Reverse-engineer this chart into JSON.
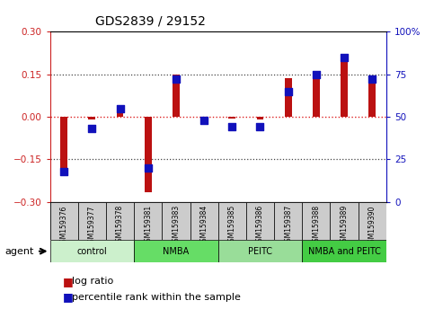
{
  "title": "GDS2839 / 29152",
  "samples": [
    "GSM159376",
    "GSM159377",
    "GSM159378",
    "GSM159381",
    "GSM159383",
    "GSM159384",
    "GSM159385",
    "GSM159386",
    "GSM159387",
    "GSM159388",
    "GSM159389",
    "GSM159390"
  ],
  "log_ratio": [
    -0.195,
    -0.01,
    0.02,
    -0.265,
    0.148,
    -0.005,
    -0.005,
    -0.01,
    0.135,
    0.148,
    0.195,
    0.145
  ],
  "percentile_rank": [
    18,
    43,
    55,
    20,
    72,
    48,
    44,
    44,
    65,
    75,
    85,
    72
  ],
  "groups": [
    {
      "label": "control",
      "start": 0,
      "end": 3,
      "color": "#ccf0cc"
    },
    {
      "label": "NMBA",
      "start": 3,
      "end": 6,
      "color": "#66dd66"
    },
    {
      "label": "PEITC",
      "start": 6,
      "end": 9,
      "color": "#99dd99"
    },
    {
      "label": "NMBA and PEITC",
      "start": 9,
      "end": 12,
      "color": "#44cc44"
    }
  ],
  "bar_color": "#bb1111",
  "dot_color": "#1111bb",
  "zero_line_color": "#dd2222",
  "dotted_line_color": "#444444",
  "ylim_left": [
    -0.3,
    0.3
  ],
  "ylim_right": [
    0,
    100
  ],
  "yticks_left": [
    -0.3,
    -0.15,
    0,
    0.15,
    0.3
  ],
  "yticks_right": [
    0,
    25,
    50,
    75,
    100
  ],
  "ylabel_left_color": "#cc2222",
  "ylabel_right_color": "#1111bb",
  "bar_width": 0.25,
  "dot_size": 28,
  "header_bg": "#cccccc",
  "legend_bar_label": "log ratio",
  "legend_dot_label": "percentile rank within the sample"
}
